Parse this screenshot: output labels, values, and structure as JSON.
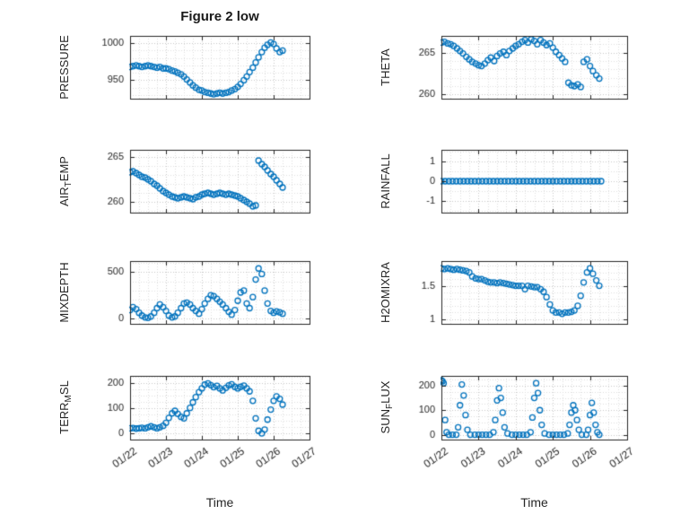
{
  "chart_data": {
    "type": "scatter",
    "figure_title": "Figure 2 low",
    "marker": {
      "shape": "circle-open",
      "color": "#0072BD",
      "radius": 3
    },
    "grid": {
      "major_on": true,
      "minor_on": true,
      "style": "dotted"
    },
    "x_axis": {
      "label": "Time",
      "lim": [
        0,
        5
      ],
      "ticks": [
        0,
        1,
        2,
        3,
        4,
        5
      ],
      "tick_labels": [
        "01/22",
        "01/23",
        "01/24",
        "01/25",
        "01/26",
        "01/27"
      ],
      "minor_step": 0.25
    },
    "subplots": [
      {
        "name": "pressure",
        "ylabel": "PRESSURE",
        "ylabel_parts": {
          "pre": "PRESSURE",
          "sub": "",
          "post": ""
        },
        "yticks": [
          950,
          1000
        ],
        "ylim": [
          925,
          1010
        ],
        "yminor": 10,
        "x": [
          0,
          0.08,
          0.17,
          0.25,
          0.33,
          0.42,
          0.5,
          0.58,
          0.67,
          0.75,
          0.83,
          0.92,
          1,
          1.08,
          1.17,
          1.25,
          1.33,
          1.42,
          1.5,
          1.58,
          1.67,
          1.75,
          1.83,
          1.92,
          2,
          2.08,
          2.17,
          2.25,
          2.33,
          2.42,
          2.5,
          2.58,
          2.67,
          2.75,
          2.83,
          2.92,
          3,
          3.08,
          3.17,
          3.25,
          3.33,
          3.42,
          3.5,
          3.58,
          3.67,
          3.75,
          3.83,
          3.92,
          4,
          4.08,
          4.17,
          4.25
        ],
        "y": [
          968,
          969,
          970,
          969,
          968,
          969,
          970,
          969,
          968,
          967,
          968,
          966,
          966,
          965,
          963,
          962,
          960,
          958,
          955,
          951,
          947,
          943,
          940,
          937,
          936,
          934,
          933,
          932,
          931,
          932,
          933,
          932,
          933,
          934,
          936,
          938,
          941,
          945,
          950,
          955,
          961,
          967,
          974,
          981,
          988,
          994,
          998,
          1001,
          999,
          993,
          988,
          990
        ]
      },
      {
        "name": "theta",
        "ylabel": "THETA",
        "ylabel_parts": {
          "pre": "THETA",
          "sub": "",
          "post": ""
        },
        "yticks": [
          260,
          265
        ],
        "ylim": [
          259.5,
          267
        ],
        "yminor": 1,
        "x": [
          0,
          0.08,
          0.17,
          0.25,
          0.33,
          0.42,
          0.5,
          0.58,
          0.67,
          0.75,
          0.83,
          0.92,
          1,
          1.08,
          1.17,
          1.25,
          1.33,
          1.42,
          1.5,
          1.58,
          1.67,
          1.75,
          1.83,
          1.92,
          2,
          2.08,
          2.17,
          2.25,
          2.33,
          2.42,
          2.5,
          2.58,
          2.67,
          2.75,
          2.83,
          2.92,
          3,
          3.08,
          3.17,
          3.25,
          3.33,
          3.42,
          3.5,
          3.58,
          3.67,
          3.75,
          3.83,
          3.92,
          4,
          4.08,
          4.17,
          4.25
        ],
        "y": [
          266.2,
          266.3,
          266.1,
          266,
          265.8,
          265.5,
          265.2,
          264.9,
          264.5,
          264.2,
          263.9,
          263.7,
          263.5,
          263.4,
          263.7,
          264.1,
          264.4,
          264,
          264.6,
          264.9,
          265.1,
          264.7,
          265.2,
          265.5,
          265.8,
          266,
          266.3,
          266.5,
          266.2,
          266.6,
          266.4,
          266,
          266.5,
          266.2,
          265.9,
          266.1,
          265.6,
          265.1,
          264.7,
          264.3,
          263.9,
          261.4,
          261.1,
          261,
          261.2,
          260.9,
          263.9,
          264.2,
          263.4,
          262.8,
          262.3,
          261.9
        ]
      },
      {
        "name": "air-temp",
        "ylabel": "AIR_TEMP",
        "ylabel_parts": {
          "pre": "AIR",
          "sub": "T",
          "post": "EMP"
        },
        "yticks": [
          260,
          265
        ],
        "ylim": [
          258.8,
          265.8
        ],
        "yminor": 1,
        "x": [
          0,
          0.08,
          0.17,
          0.25,
          0.33,
          0.42,
          0.5,
          0.58,
          0.67,
          0.75,
          0.83,
          0.92,
          1,
          1.08,
          1.17,
          1.25,
          1.33,
          1.42,
          1.5,
          1.58,
          1.67,
          1.75,
          1.83,
          1.92,
          2,
          2.08,
          2.17,
          2.25,
          2.33,
          2.42,
          2.5,
          2.58,
          2.67,
          2.75,
          2.83,
          2.92,
          3,
          3.08,
          3.17,
          3.25,
          3.33,
          3.42,
          3.5,
          3.58,
          3.67,
          3.75,
          3.83,
          3.92,
          4,
          4.08,
          4.17,
          4.25
        ],
        "y": [
          263.3,
          263.4,
          263.2,
          263,
          262.8,
          262.7,
          262.5,
          262.3,
          262,
          261.8,
          261.5,
          261.2,
          261,
          260.8,
          260.6,
          260.5,
          260.4,
          260.5,
          260.6,
          260.5,
          260.4,
          260.3,
          260.5,
          260.6,
          260.8,
          260.9,
          261,
          260.9,
          260.8,
          260.9,
          261,
          260.9,
          260.8,
          260.9,
          260.8,
          260.7,
          260.6,
          260.4,
          260.2,
          260,
          259.8,
          259.5,
          259.6,
          264.6,
          264.2,
          263.9,
          263.5,
          263.1,
          262.8,
          262.4,
          262,
          261.6
        ]
      },
      {
        "name": "rainfall",
        "ylabel": "RAINFALL",
        "ylabel_parts": {
          "pre": "RAINFALL",
          "sub": "",
          "post": ""
        },
        "yticks": [
          -1,
          0,
          1
        ],
        "ylim": [
          -1.6,
          1.6
        ],
        "yminor": 0.5,
        "x": [
          0,
          0.1,
          0.2,
          0.3,
          0.4,
          0.5,
          0.6,
          0.7,
          0.8,
          0.9,
          1,
          1.1,
          1.2,
          1.3,
          1.4,
          1.5,
          1.6,
          1.7,
          1.8,
          1.9,
          2,
          2.1,
          2.2,
          2.3,
          2.4,
          2.5,
          2.6,
          2.7,
          2.8,
          2.9,
          3,
          3.1,
          3.2,
          3.3,
          3.4,
          3.5,
          3.6,
          3.7,
          3.8,
          3.9,
          4,
          4.1,
          4.2,
          4.3
        ],
        "y": [
          0,
          0,
          0,
          0,
          0,
          0,
          0,
          0,
          0,
          0,
          0,
          0,
          0,
          0,
          0,
          0,
          0,
          0,
          0,
          0,
          0,
          0,
          0,
          0,
          0,
          0,
          0,
          0,
          0,
          0,
          0,
          0,
          0,
          0,
          0,
          0,
          0,
          0,
          0,
          0,
          0,
          0,
          0,
          0
        ]
      },
      {
        "name": "mixdepth",
        "ylabel": "MIXDEPTH",
        "ylabel_parts": {
          "pre": "MIXDEPTH",
          "sub": "",
          "post": ""
        },
        "yticks": [
          0,
          500
        ],
        "ylim": [
          -60,
          620
        ],
        "yminor": 100,
        "x": [
          0,
          0.08,
          0.17,
          0.25,
          0.33,
          0.42,
          0.5,
          0.58,
          0.67,
          0.75,
          0.83,
          0.92,
          1,
          1.08,
          1.17,
          1.25,
          1.33,
          1.42,
          1.5,
          1.58,
          1.67,
          1.75,
          1.83,
          1.92,
          2,
          2.08,
          2.17,
          2.25,
          2.33,
          2.42,
          2.5,
          2.58,
          2.67,
          2.75,
          2.83,
          2.92,
          3,
          3.08,
          3.17,
          3.25,
          3.33,
          3.42,
          3.5,
          3.58,
          3.67,
          3.75,
          3.83,
          3.92,
          4,
          4.08,
          4.17,
          4.25
        ],
        "y": [
          90,
          120,
          100,
          60,
          30,
          10,
          5,
          20,
          60,
          110,
          150,
          120,
          80,
          30,
          10,
          20,
          60,
          110,
          160,
          170,
          150,
          110,
          80,
          50,
          100,
          160,
          210,
          250,
          240,
          210,
          180,
          150,
          110,
          70,
          40,
          90,
          190,
          280,
          300,
          160,
          110,
          230,
          420,
          540,
          480,
          300,
          160,
          80,
          60,
          75,
          65,
          50
        ]
      },
      {
        "name": "h2omixra",
        "ylabel": "H2OMIXRA",
        "ylabel_parts": {
          "pre": "H2OMIXRA",
          "sub": "",
          "post": ""
        },
        "yticks": [
          1,
          1.5
        ],
        "ylim": [
          0.93,
          1.87
        ],
        "yminor": 0.1,
        "x": [
          0,
          0.08,
          0.17,
          0.25,
          0.33,
          0.42,
          0.5,
          0.58,
          0.67,
          0.75,
          0.83,
          0.92,
          1,
          1.08,
          1.17,
          1.25,
          1.33,
          1.42,
          1.5,
          1.58,
          1.67,
          1.75,
          1.83,
          1.92,
          2,
          2.08,
          2.17,
          2.25,
          2.33,
          2.42,
          2.5,
          2.58,
          2.67,
          2.75,
          2.83,
          2.92,
          3,
          3.08,
          3.17,
          3.25,
          3.33,
          3.42,
          3.5,
          3.58,
          3.67,
          3.75,
          3.83,
          3.92,
          4,
          4.08,
          4.17,
          4.25
        ],
        "y": [
          1.76,
          1.75,
          1.76,
          1.75,
          1.74,
          1.75,
          1.74,
          1.73,
          1.72,
          1.7,
          1.64,
          1.61,
          1.6,
          1.6,
          1.58,
          1.56,
          1.55,
          1.55,
          1.54,
          1.55,
          1.54,
          1.53,
          1.52,
          1.51,
          1.5,
          1.5,
          1.5,
          1.45,
          1.5,
          1.49,
          1.48,
          1.48,
          1.45,
          1.41,
          1.33,
          1.22,
          1.13,
          1.1,
          1.1,
          1.08,
          1.1,
          1.1,
          1.11,
          1.13,
          1.2,
          1.35,
          1.55,
          1.7,
          1.76,
          1.68,
          1.58,
          1.5
        ]
      },
      {
        "name": "terr-msl",
        "ylabel": "TERR_MSL",
        "ylabel_parts": {
          "pre": "TERR",
          "sub": "M",
          "post": "SL"
        },
        "yticks": [
          0,
          100,
          200
        ],
        "ylim": [
          -25,
          230
        ],
        "yminor": 25,
        "x": [
          0,
          0.08,
          0.17,
          0.25,
          0.33,
          0.42,
          0.5,
          0.58,
          0.67,
          0.75,
          0.83,
          0.92,
          1,
          1.08,
          1.17,
          1.25,
          1.33,
          1.42,
          1.5,
          1.58,
          1.67,
          1.75,
          1.83,
          1.92,
          2,
          2.08,
          2.17,
          2.25,
          2.33,
          2.42,
          2.5,
          2.58,
          2.67,
          2.75,
          2.83,
          2.92,
          3,
          3.08,
          3.17,
          3.25,
          3.33,
          3.42,
          3.5,
          3.58,
          3.67,
          3.75,
          3.83,
          3.92,
          4,
          4.08,
          4.17,
          4.25
        ],
        "y": [
          20,
          21,
          19,
          20,
          22,
          20,
          24,
          28,
          24,
          20,
          24,
          30,
          42,
          62,
          80,
          90,
          78,
          66,
          60,
          80,
          102,
          124,
          145,
          165,
          180,
          195,
          200,
          193,
          185,
          190,
          180,
          172,
          182,
          192,
          196,
          186,
          180,
          186,
          191,
          180,
          168,
          130,
          60,
          10,
          0,
          15,
          55,
          95,
          130,
          148,
          138,
          115
        ]
      },
      {
        "name": "sun-flux",
        "ylabel": "SUN_FLUX",
        "ylabel_parts": {
          "pre": "SUN",
          "sub": "F",
          "post": "LUX"
        },
        "yticks": [
          0,
          100,
          200
        ],
        "ylim": [
          -20,
          240
        ],
        "yminor": 25,
        "x": [
          0,
          0.03,
          0.06,
          0.1,
          0.14,
          0.2,
          0.3,
          0.4,
          0.45,
          0.5,
          0.55,
          0.6,
          0.65,
          0.7,
          0.78,
          0.9,
          1,
          1.1,
          1.2,
          1.3,
          1.4,
          1.45,
          1.5,
          1.55,
          1.6,
          1.65,
          1.7,
          1.78,
          1.9,
          2,
          2.1,
          2.2,
          2.3,
          2.4,
          2.45,
          2.5,
          2.55,
          2.6,
          2.65,
          2.7,
          2.78,
          2.9,
          3,
          3.1,
          3.2,
          3.3,
          3.4,
          3.45,
          3.5,
          3.55,
          3.6,
          3.65,
          3.7,
          3.78,
          3.9,
          3.95,
          4,
          4.05,
          4.1,
          4.15,
          4.2,
          4.25
        ],
        "y": [
          222,
          218,
          210,
          60,
          10,
          0,
          0,
          0,
          30,
          120,
          205,
          160,
          80,
          20,
          0,
          0,
          0,
          0,
          0,
          0,
          10,
          60,
          140,
          190,
          150,
          90,
          30,
          5,
          0,
          0,
          0,
          0,
          0,
          10,
          70,
          150,
          210,
          170,
          100,
          40,
          5,
          0,
          0,
          0,
          0,
          0,
          5,
          40,
          90,
          120,
          100,
          60,
          20,
          0,
          0,
          20,
          80,
          130,
          90,
          40,
          10,
          0
        ]
      }
    ]
  }
}
